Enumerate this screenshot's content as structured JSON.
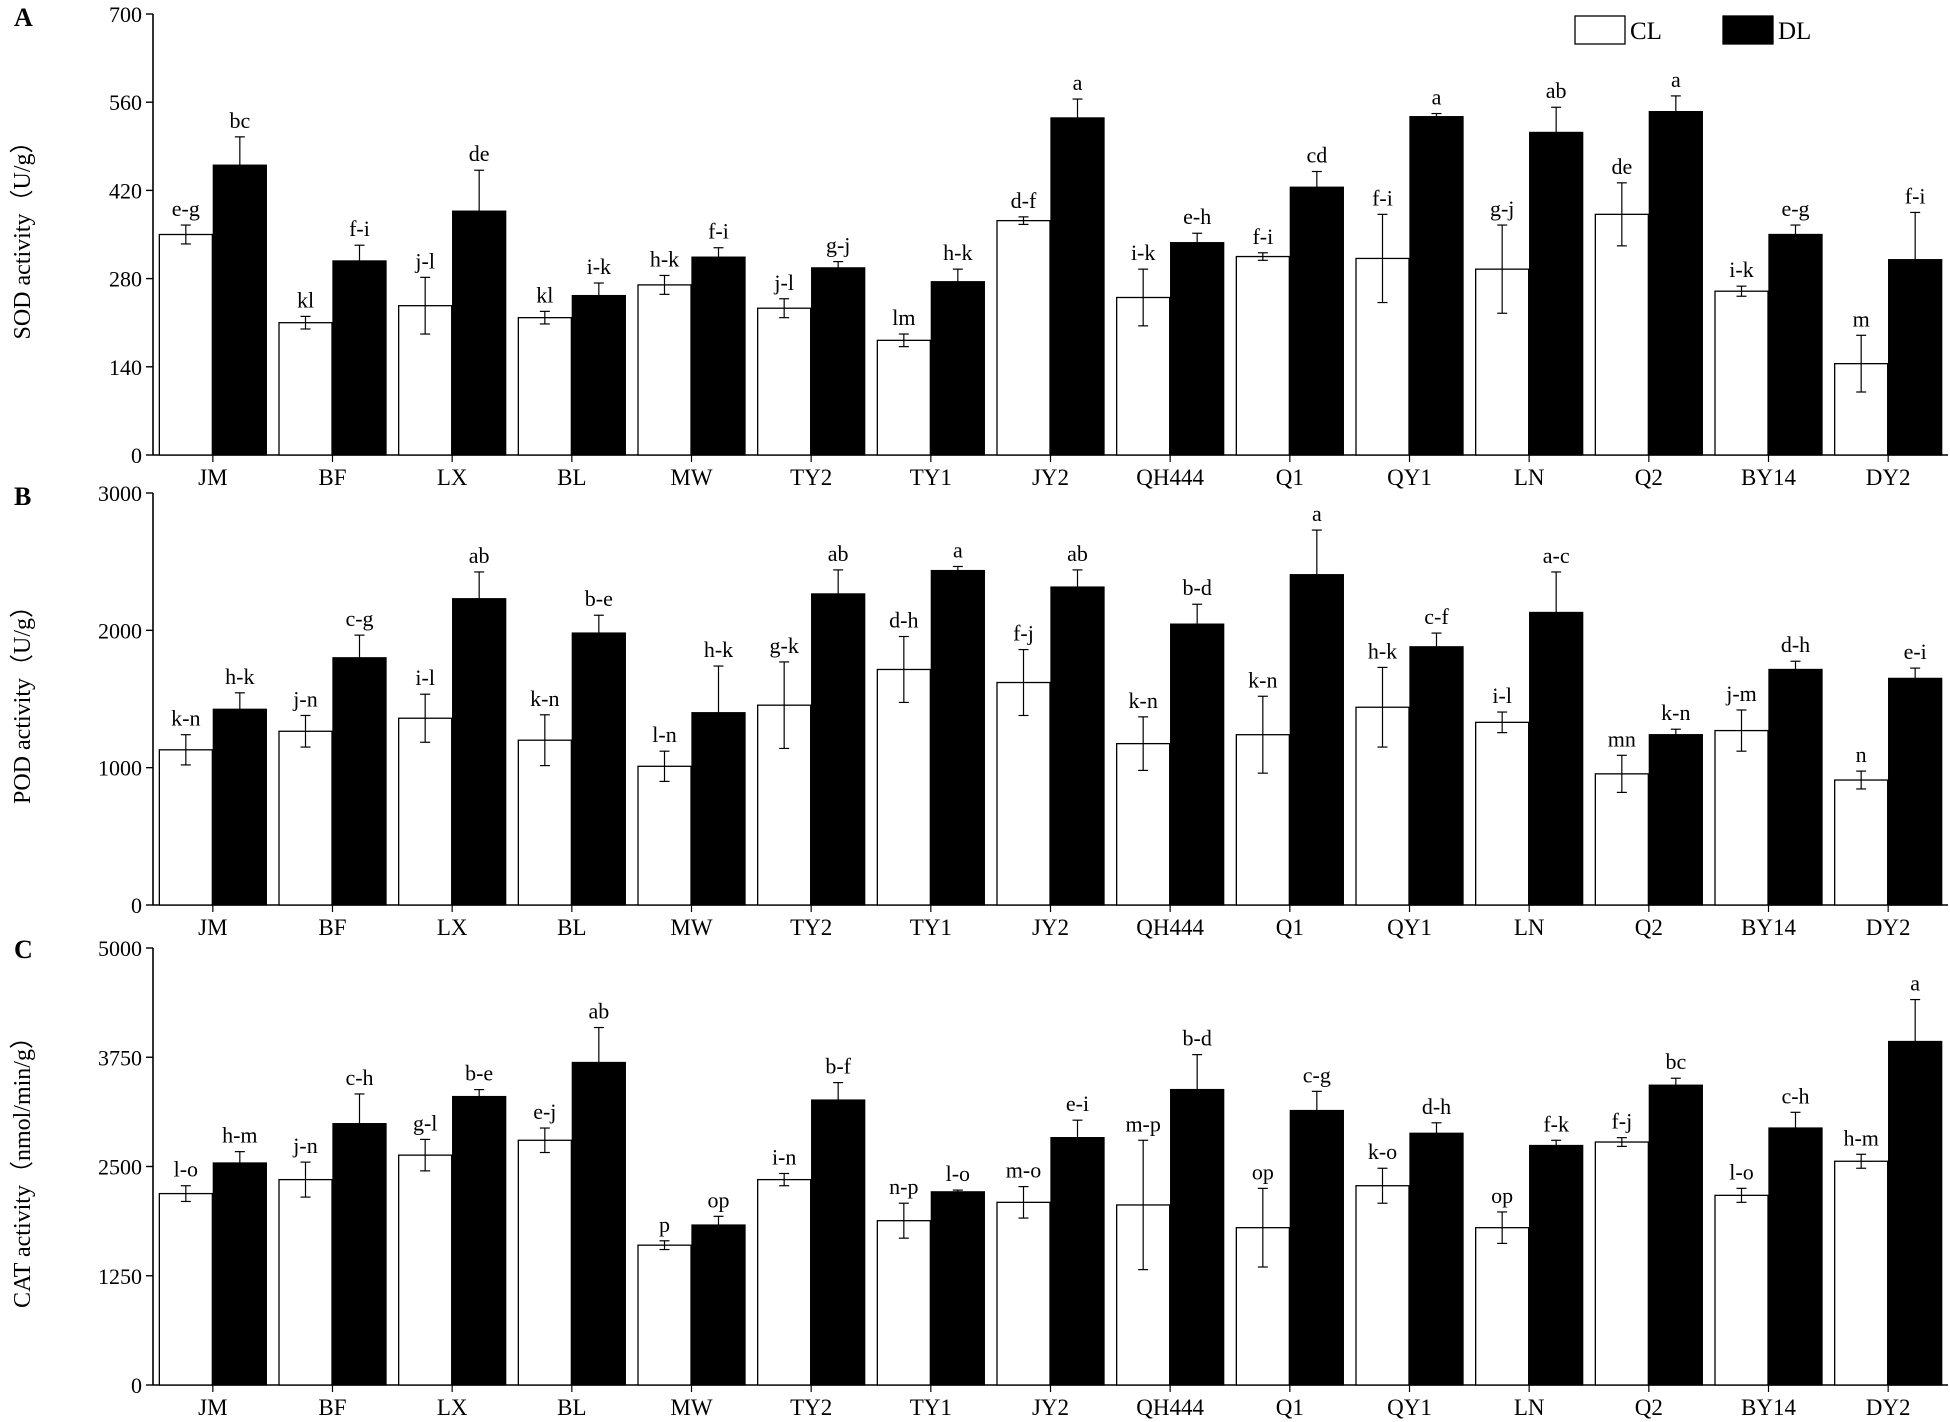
{
  "legend": {
    "position": "top-right",
    "items": [
      {
        "label": "CL",
        "color": "#ffffff"
      },
      {
        "label": "DL",
        "color": "#000000"
      }
    ]
  },
  "chart_data": [
    {
      "type": "bar",
      "panel_label": "A",
      "ylabel": "SOD activity（U/g）",
      "xlabel": "",
      "ylim": [
        0,
        700
      ],
      "yticks": [
        0,
        140,
        280,
        420,
        560,
        700
      ],
      "grid": false,
      "categories": [
        "JM",
        "BF",
        "LX",
        "BL",
        "MW",
        "TY2",
        "TY1",
        "JY2",
        "QH444",
        "Q1",
        "QY1",
        "LN",
        "Q2",
        "BY14",
        "DY2"
      ],
      "series": [
        {
          "name": "CL",
          "color": "#ffffff",
          "values": [
            350,
            210,
            237,
            218,
            270,
            233,
            182,
            372,
            250,
            315,
            312,
            295,
            382,
            260,
            145
          ],
          "errors": [
            15,
            10,
            45,
            10,
            15,
            15,
            10,
            6,
            45,
            6,
            70,
            70,
            50,
            8,
            45
          ],
          "letters": [
            "e-g",
            "kl",
            "j-l",
            "kl",
            "h-k",
            "j-l",
            "lm",
            "d-f",
            "i-k",
            "f-i",
            "f-i",
            "g-j",
            "de",
            "i-k",
            "m"
          ]
        },
        {
          "name": "DL",
          "color": "#000000",
          "values": [
            460,
            308,
            387,
            253,
            314,
            297,
            275,
            535,
            337,
            425,
            537,
            512,
            545,
            350,
            310
          ],
          "errors": [
            45,
            25,
            65,
            20,
            15,
            10,
            20,
            30,
            15,
            25,
            5,
            40,
            25,
            15,
            75
          ],
          "letters": [
            "bc",
            "f-i",
            "de",
            "i-k",
            "f-i",
            "g-j",
            "h-k",
            "a",
            "e-h",
            "cd",
            "a",
            "ab",
            "a",
            "e-g",
            "f-i"
          ]
        }
      ]
    },
    {
      "type": "bar",
      "panel_label": "B",
      "ylabel": "POD activity（U/g）",
      "xlabel": "",
      "ylim": [
        0,
        3000
      ],
      "yticks": [
        0,
        1000,
        2000,
        3000
      ],
      "grid": false,
      "categories": [
        "JM",
        "BF",
        "LX",
        "BL",
        "MW",
        "TY2",
        "TY1",
        "JY2",
        "QH444",
        "Q1",
        "QY1",
        "LN",
        "Q2",
        "BY14",
        "DY2"
      ],
      "series": [
        {
          "name": "CL",
          "color": "#ffffff",
          "values": [
            1130,
            1265,
            1360,
            1200,
            1010,
            1455,
            1715,
            1620,
            1175,
            1240,
            1440,
            1330,
            955,
            1270,
            910
          ],
          "errors": [
            110,
            115,
            175,
            185,
            110,
            315,
            240,
            240,
            195,
            280,
            290,
            75,
            135,
            150,
            65
          ],
          "letters": [
            "k-n",
            "j-n",
            "i-l",
            "k-n",
            "l-n",
            "g-k",
            "d-h",
            "f-j",
            "k-n",
            "k-n",
            "h-k",
            "i-l",
            "mn",
            "j-m",
            "n"
          ]
        },
        {
          "name": "DL",
          "color": "#000000",
          "values": [
            1425,
            1800,
            2230,
            1980,
            1400,
            2265,
            2435,
            2315,
            2045,
            2405,
            1880,
            2130,
            1240,
            1715,
            1650
          ],
          "errors": [
            120,
            165,
            195,
            130,
            340,
            175,
            30,
            125,
            145,
            325,
            100,
            295,
            40,
            60,
            75
          ],
          "letters": [
            "h-k",
            "c-g",
            "ab",
            "b-e",
            "h-k",
            "ab",
            "a",
            "ab",
            "b-d",
            "a",
            "c-f",
            "a-c",
            "k-n",
            "d-h",
            "e-i"
          ]
        }
      ]
    },
    {
      "type": "bar",
      "panel_label": "C",
      "ylabel": "CAT activity（nmol/min/g）",
      "xlabel": "",
      "ylim": [
        0,
        5000
      ],
      "yticks": [
        0,
        1250,
        2500,
        3750,
        5000
      ],
      "grid": false,
      "categories": [
        "JM",
        "BF",
        "LX",
        "BL",
        "MW",
        "TY2",
        "TY1",
        "JY2",
        "QH444",
        "Q1",
        "QY1",
        "LN",
        "Q2",
        "BY14",
        "DY2"
      ],
      "series": [
        {
          "name": "CL",
          "color": "#ffffff",
          "values": [
            2190,
            2350,
            2630,
            2800,
            1600,
            2350,
            1880,
            2090,
            2060,
            1800,
            2280,
            1800,
            2780,
            2170,
            2560
          ],
          "errors": [
            90,
            200,
            180,
            140,
            50,
            70,
            200,
            180,
            740,
            450,
            200,
            180,
            50,
            80,
            80
          ],
          "letters": [
            "l-o",
            "j-n",
            "g-l",
            "e-j",
            "p",
            "i-n",
            "n-p",
            "m-o",
            "m-p",
            "op",
            "k-o",
            "op",
            "f-j",
            "l-o",
            "h-m"
          ]
        },
        {
          "name": "DL",
          "color": "#000000",
          "values": [
            2540,
            2990,
            3300,
            3690,
            1830,
            3260,
            2210,
            2830,
            3380,
            3140,
            2880,
            2740,
            3430,
            2940,
            3930
          ],
          "errors": [
            130,
            340,
            80,
            400,
            100,
            200,
            20,
            200,
            400,
            220,
            120,
            60,
            80,
            180,
            480
          ],
          "letters": [
            "h-m",
            "c-h",
            "b-e",
            "ab",
            "op",
            "b-f",
            "l-o",
            "e-i",
            "b-d",
            "c-g",
            "d-h",
            "f-k",
            "bc",
            "c-h",
            "a"
          ]
        }
      ]
    }
  ]
}
